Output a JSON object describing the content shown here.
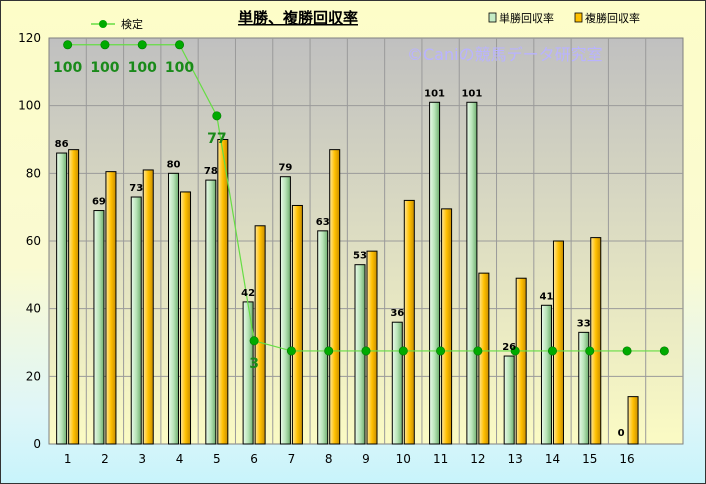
{
  "chart_data": {
    "type": "bar",
    "title": "単勝、複勝回収率",
    "watermark": "©Caniの競馬データ研究室",
    "categories": [
      "1",
      "2",
      "3",
      "4",
      "5",
      "6",
      "7",
      "8",
      "9",
      "10",
      "11",
      "12",
      "13",
      "14",
      "15",
      "16",
      ""
    ],
    "ylim": [
      0,
      120
    ],
    "yticks": [
      0,
      20,
      40,
      60,
      80,
      100,
      120
    ],
    "series": [
      {
        "name": "単勝回収率",
        "type": "bar",
        "color": "#c4ecc4",
        "values": [
          86,
          69,
          73,
          80,
          78,
          42,
          79,
          63,
          53,
          36,
          101,
          101,
          26,
          41,
          33,
          0,
          null
        ],
        "labels": [
          "86",
          "69",
          "73",
          "80",
          "78",
          "42",
          "79",
          "63",
          "53",
          "36",
          "101",
          "101",
          "26",
          "41",
          "33",
          "0",
          ""
        ]
      },
      {
        "name": "複勝回収率",
        "type": "bar",
        "color": "#ffc000",
        "values": [
          87,
          80.5,
          81,
          74.5,
          90,
          64.5,
          70.5,
          87,
          57,
          72,
          69.5,
          50.5,
          49,
          60,
          61,
          14,
          null
        ]
      },
      {
        "name": "検定",
        "type": "line",
        "color": "#00aa00",
        "values": [
          118,
          118,
          118,
          118,
          97,
          30.5,
          27.5,
          27.5,
          27.5,
          27.5,
          27.5,
          27.5,
          27.5,
          27.5,
          27.5,
          27.5,
          27.5
        ],
        "labels": [
          "100",
          "100",
          "100",
          "100",
          "77",
          "3",
          "",
          "",
          "",
          "",
          "",
          "",
          "",
          "",
          "",
          "",
          ""
        ]
      }
    ],
    "legend": {
      "position": "top-right"
    },
    "grid": true
  }
}
